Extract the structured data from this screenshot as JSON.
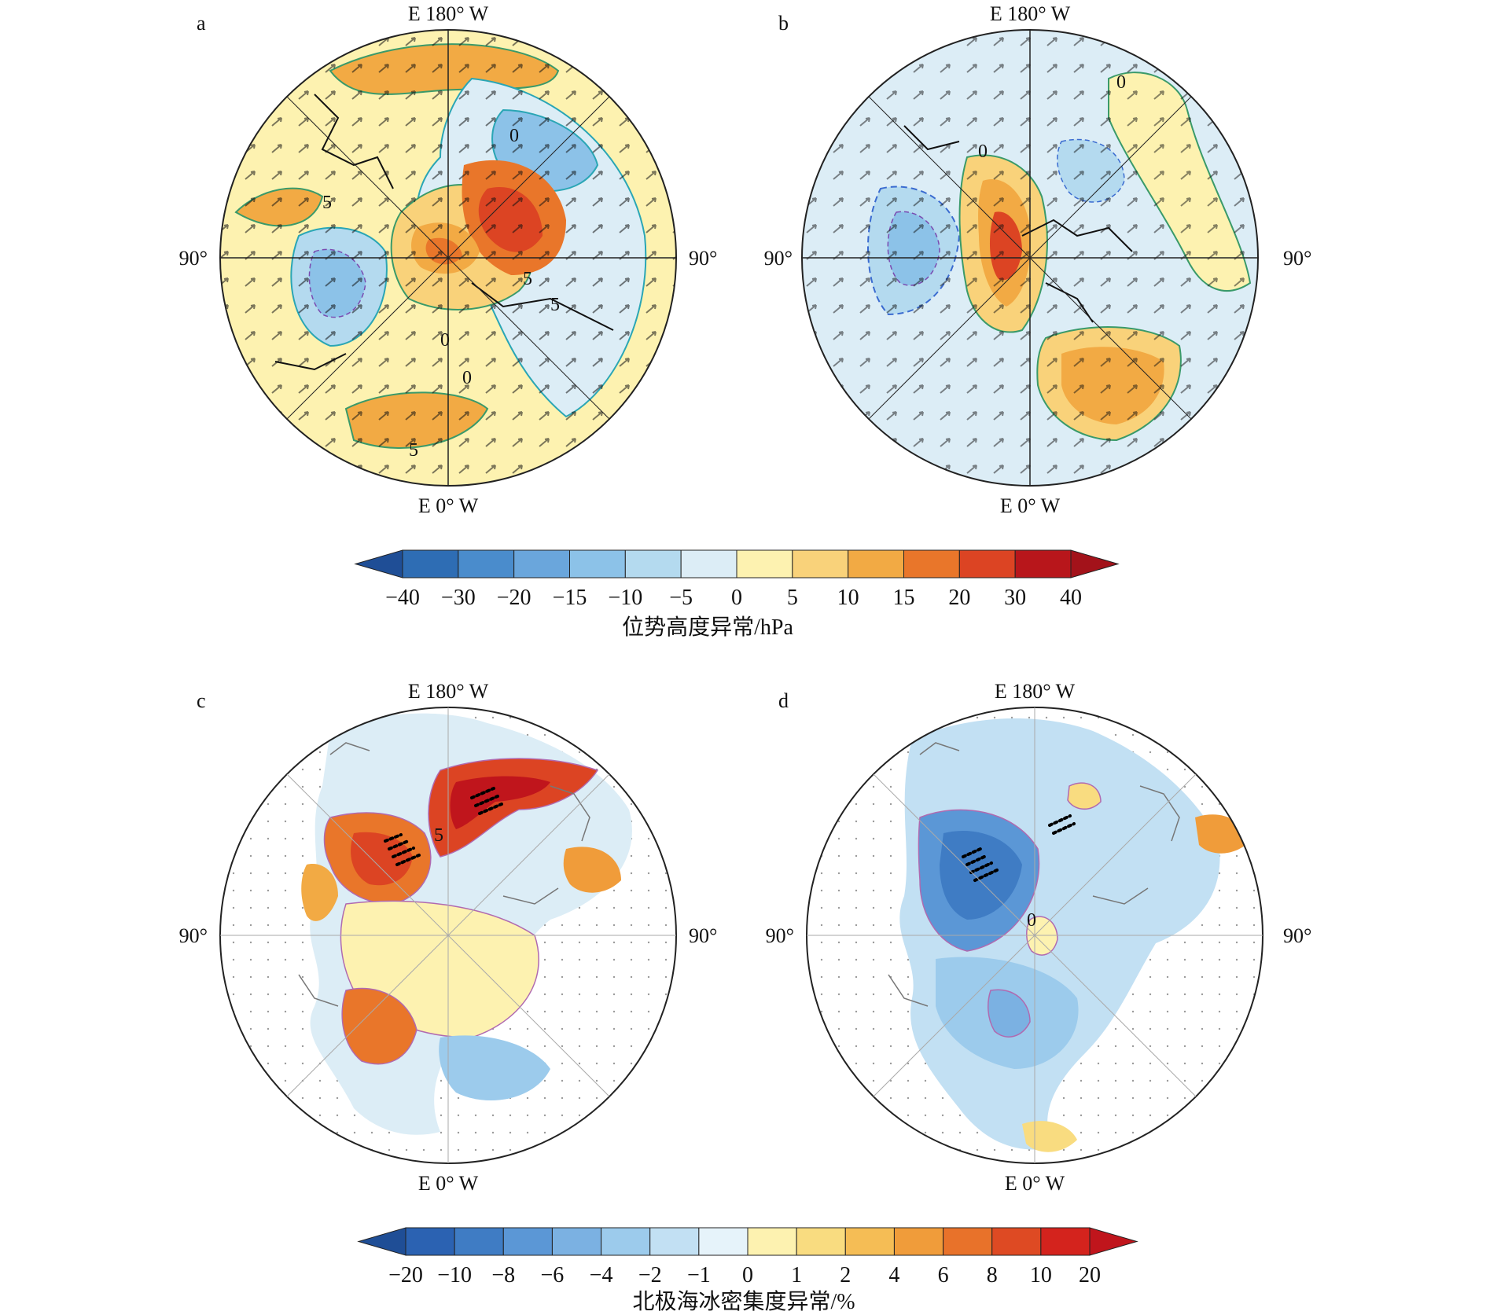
{
  "panels": [
    {
      "label": "a",
      "lon_top": "E 180° W",
      "lon_bottom": "E 0° W",
      "lon_left": "90°",
      "lon_right": "90°",
      "contour_labels": [
        "5",
        "0",
        "5",
        "0",
        "5",
        "5",
        "0"
      ]
    },
    {
      "label": "b",
      "lon_top": "E 180° W",
      "lon_bottom": "E 0° W",
      "lon_left": "90°",
      "lon_right": "90°",
      "contour_labels": [
        "0",
        "0"
      ]
    },
    {
      "label": "c",
      "lon_top": "E 180° W",
      "lon_bottom": "E 0° W",
      "lon_left": "90°",
      "lon_right": "90°",
      "contour_labels": [
        "5"
      ]
    },
    {
      "label": "d",
      "lon_top": "E 180° W",
      "lon_bottom": "E 0° W",
      "lon_left": "90°",
      "lon_right": "90°",
      "contour_labels": [
        "0"
      ]
    }
  ],
  "colorbars": [
    {
      "title": "位势高度异常/hPa",
      "ticks": [
        "−40",
        "−30",
        "−20",
        "−15",
        "−10",
        "−5",
        "0",
        "5",
        "10",
        "15",
        "20",
        "30",
        "40"
      ],
      "colors": [
        "#2e6db4",
        "#4a8ccc",
        "#6aa6dc",
        "#8cc2e8",
        "#b4daef",
        "#dcedf6",
        "#fdf2b0",
        "#f9d27a",
        "#f2aa44",
        "#e9762a",
        "#dc4423",
        "#b8161b"
      ],
      "low_color": "#1f4e96",
      "high_color": "#a3121a"
    },
    {
      "title": "北极海冰密集度异常/%",
      "ticks": [
        "−20",
        "−10",
        "−8",
        "−6",
        "−4",
        "−2",
        "−1",
        "0",
        "1",
        "2",
        "4",
        "6",
        "8",
        "10",
        "20"
      ],
      "colors": [
        "#2b62b2",
        "#3f7cc4",
        "#5b97d6",
        "#7bb1e2",
        "#9ccbec",
        "#c2e0f3",
        "#e6f3fa",
        "#fdf2b0",
        "#f9dc80",
        "#f5bd55",
        "#f09c3a",
        "#e8722a",
        "#de4a23",
        "#d4231d"
      ],
      "low_color": "#1f4e96",
      "high_color": "#c0151c"
    }
  ]
}
